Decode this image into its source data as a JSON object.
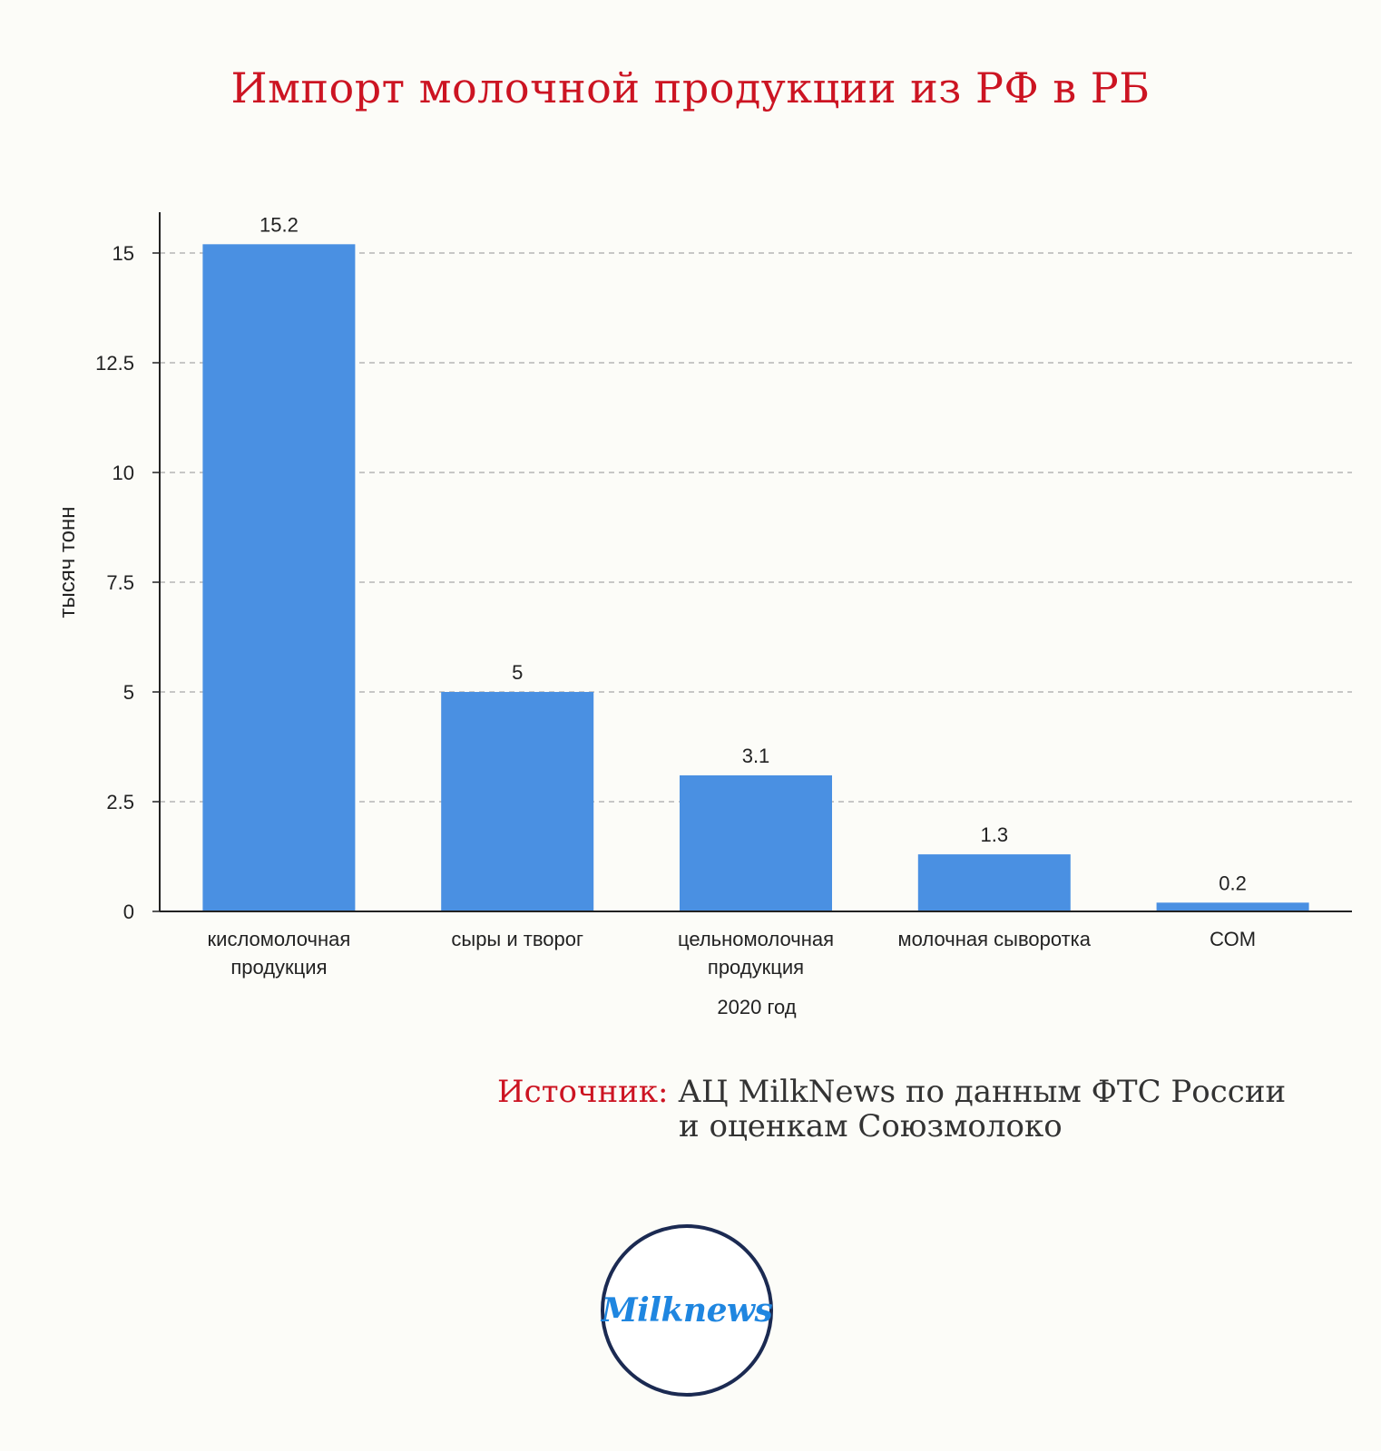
{
  "title": "Импорт молочной продукции из РФ в РБ",
  "source": {
    "label": "Источник:",
    "line1": "АЦ MilkNews по данным ФТС России",
    "line2": "и оценкам Союзмолоко"
  },
  "logo": {
    "text": "Milknews"
  },
  "colors": {
    "bar": "#4a90e2",
    "title": "#cc1422",
    "logo_border": "#1b2a52",
    "logo_text": "#1f86e0"
  },
  "chart_data": {
    "type": "bar",
    "categories": [
      [
        "кисломолочная",
        "продукция"
      ],
      [
        "сыры и творог"
      ],
      [
        "цельномолочная",
        "продукция"
      ],
      [
        "молочная сыворотка"
      ],
      [
        "СОМ"
      ]
    ],
    "values": [
      15.2,
      5,
      3.1,
      1.3,
      0.2
    ],
    "value_labels": [
      "15.2",
      "5",
      "3.1",
      "1.3",
      "0.2"
    ],
    "xlabel": "2020 год",
    "ylabel": "тысяч тонн",
    "yticks": [
      0,
      2.5,
      5,
      7.5,
      10,
      12.5,
      15
    ],
    "ytick_labels": [
      "0",
      "2.5",
      "5",
      "7.5",
      "10",
      "12.5",
      "15"
    ],
    "ylim": [
      0,
      16
    ],
    "grid": true
  }
}
